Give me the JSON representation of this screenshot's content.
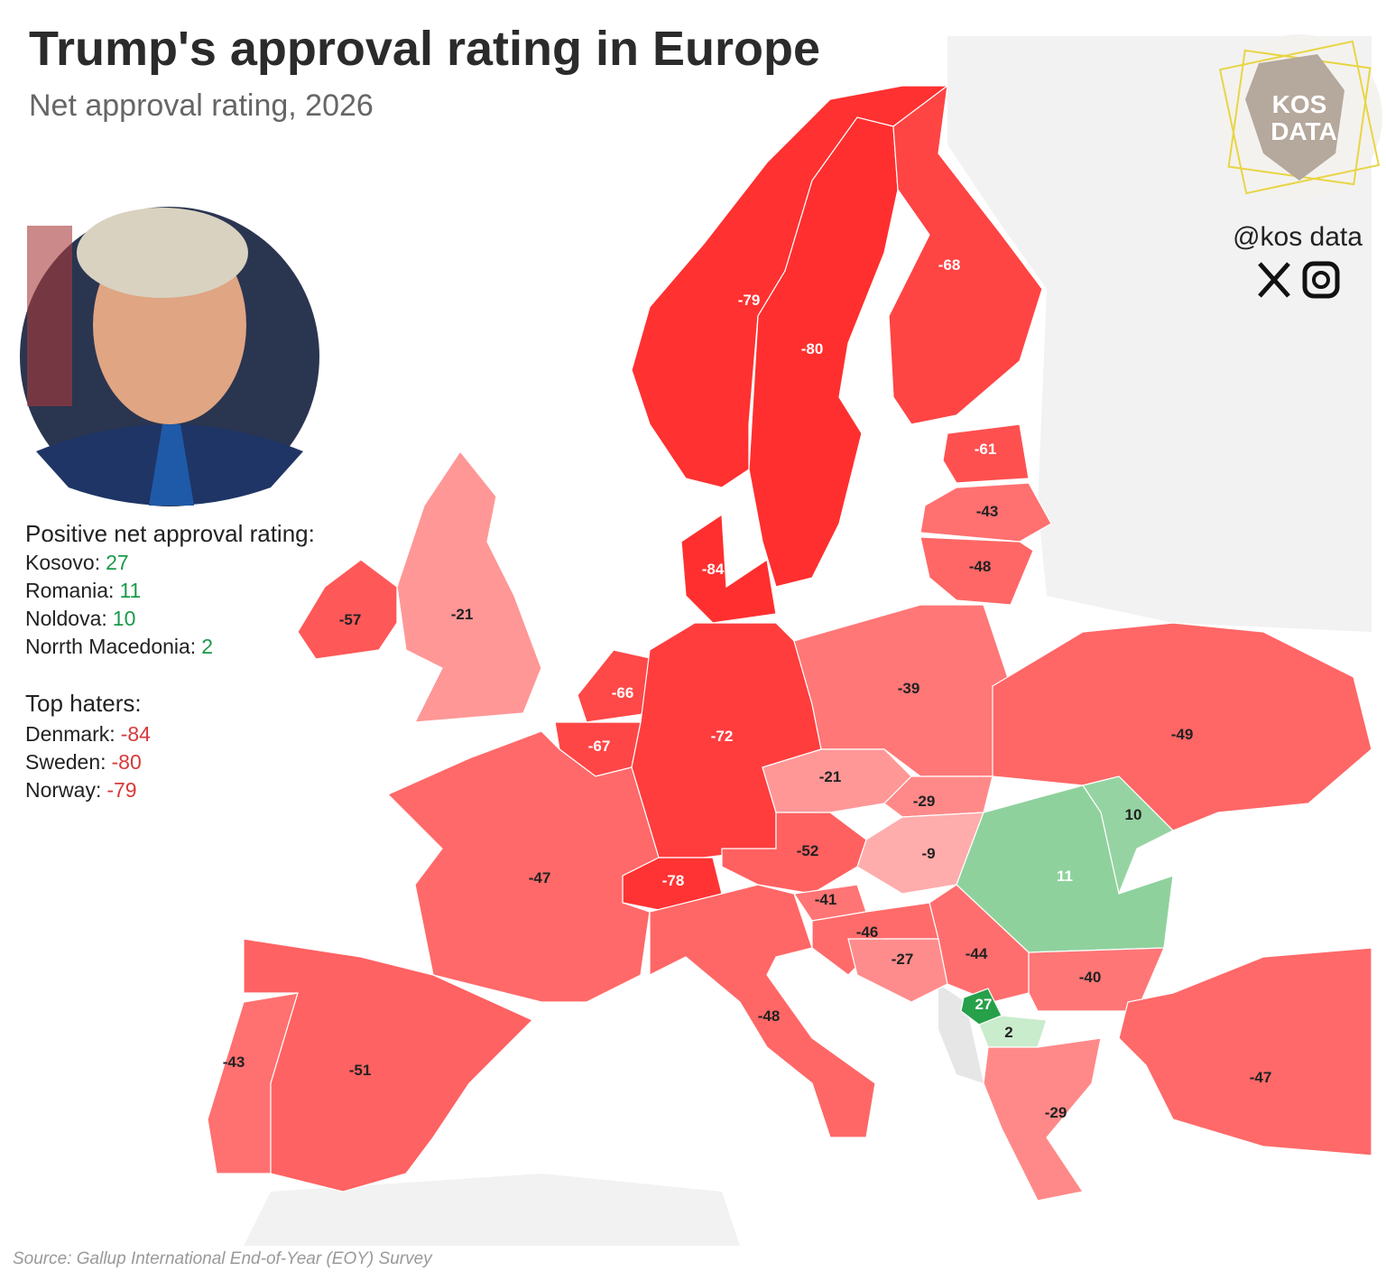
{
  "header": {
    "title": "Trump's approval rating in Europe",
    "subtitle": "Net approval rating, 2026"
  },
  "brand": {
    "logo_lines": [
      "KOS",
      "DATA"
    ],
    "handle": "@kos data"
  },
  "sidebar": {
    "positive_title": "Positive net approval rating:",
    "positive": [
      {
        "label": "Kosovo:",
        "value": 27
      },
      {
        "label": "Romania:",
        "value": 11
      },
      {
        "label": "Noldova:",
        "value": 10
      },
      {
        "label": "Norrth Macedonia:",
        "value": 2
      }
    ],
    "haters_title": "Top haters:",
    "haters": [
      {
        "label": "Denmark:",
        "value": -84
      },
      {
        "label": "Sweden:",
        "value": -80
      },
      {
        "label": "Norway:",
        "value": -79
      }
    ]
  },
  "map": {
    "values": [
      -79,
      -80,
      -68,
      -61,
      -43,
      -48,
      -84,
      -57,
      -21,
      -66,
      -67,
      -72,
      -39,
      -49,
      -21,
      -29,
      -9,
      10,
      11,
      -52,
      -78,
      -47,
      -41,
      -46,
      -27,
      -44,
      -40,
      27,
      2,
      -48,
      -29,
      -47,
      -43,
      -51
    ]
  },
  "source": "Source: Gallup International End-of-Year (EOY) Survey"
}
